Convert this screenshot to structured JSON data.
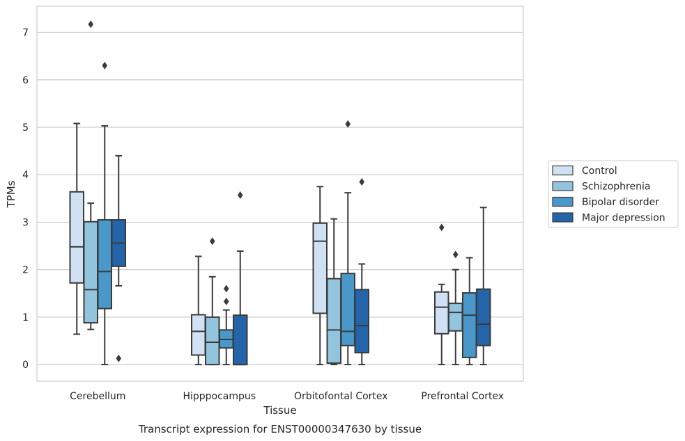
{
  "chart_data": {
    "type": "box",
    "title": "",
    "caption": "Transcript expression for ENST00000347630 by tissue",
    "xlabel": "Tissue",
    "ylabel": "TPMs",
    "ylim": [
      -0.35,
      7.55
    ],
    "yticks": [
      0,
      1,
      2,
      3,
      4,
      5,
      6,
      7
    ],
    "grid": "horizontal",
    "legend_position": "right",
    "categories": [
      "Cerebellum",
      "Hipppocampus",
      "Orbitofontal Cortex",
      "Prefrontal Cortex"
    ],
    "series": [
      {
        "name": "Control",
        "color": "#cfe1f2",
        "boxes": [
          {
            "whislo": 0.64,
            "q1": 1.72,
            "med": 2.48,
            "q3": 3.64,
            "whishi": 5.08,
            "fliers": []
          },
          {
            "whislo": 0.0,
            "q1": 0.2,
            "med": 0.7,
            "q3": 1.05,
            "whishi": 2.28,
            "fliers": []
          },
          {
            "whislo": 0.0,
            "q1": 1.08,
            "med": 2.6,
            "q3": 2.98,
            "whishi": 3.75,
            "fliers": []
          },
          {
            "whislo": 0.0,
            "q1": 0.65,
            "med": 1.21,
            "q3": 1.53,
            "whishi": 1.69,
            "fliers": [
              2.89
            ]
          }
        ]
      },
      {
        "name": "Schizophrenia",
        "color": "#93c4de",
        "boxes": [
          {
            "whislo": 0.74,
            "q1": 0.88,
            "med": 1.58,
            "q3": 3.01,
            "whishi": 3.4,
            "fliers": [
              7.17
            ]
          },
          {
            "whislo": 0.0,
            "q1": 0.0,
            "med": 0.47,
            "q3": 1.0,
            "whishi": 1.85,
            "fliers": [
              2.6
            ]
          },
          {
            "whislo": 0.0,
            "q1": 0.03,
            "med": 0.73,
            "q3": 1.81,
            "whishi": 3.07,
            "fliers": []
          },
          {
            "whislo": 0.0,
            "q1": 0.71,
            "med": 1.1,
            "q3": 1.29,
            "whishi": 2.0,
            "fliers": [
              2.32
            ]
          }
        ]
      },
      {
        "name": "Bipolar disorder",
        "color": "#4a98c9",
        "boxes": [
          {
            "whislo": 0.0,
            "q1": 1.18,
            "med": 1.96,
            "q3": 3.05,
            "whishi": 5.03,
            "fliers": [
              6.3
            ]
          },
          {
            "whislo": 0.0,
            "q1": 0.35,
            "med": 0.53,
            "q3": 0.73,
            "whishi": 1.15,
            "fliers": [
              1.6,
              1.33
            ]
          },
          {
            "whislo": 0.0,
            "q1": 0.4,
            "med": 0.7,
            "q3": 1.92,
            "whishi": 3.62,
            "fliers": [
              5.07
            ]
          },
          {
            "whislo": 0.0,
            "q1": 0.15,
            "med": 1.04,
            "q3": 1.51,
            "whishi": 2.25,
            "fliers": []
          }
        ]
      },
      {
        "name": "Major depression",
        "color": "#2464a9",
        "boxes": [
          {
            "whislo": 1.66,
            "q1": 2.07,
            "med": 2.56,
            "q3": 3.05,
            "whishi": 4.4,
            "fliers": [
              0.13
            ]
          },
          {
            "whislo": 0.0,
            "q1": 0.0,
            "med": 0.0,
            "q3": 1.04,
            "whishi": 2.39,
            "fliers": [
              3.57
            ]
          },
          {
            "whislo": 0.0,
            "q1": 0.25,
            "med": 0.82,
            "q3": 1.58,
            "whishi": 2.12,
            "fliers": [
              3.85
            ]
          },
          {
            "whislo": 0.0,
            "q1": 0.4,
            "med": 0.85,
            "q3": 1.59,
            "whishi": 3.31,
            "fliers": []
          }
        ]
      }
    ]
  }
}
